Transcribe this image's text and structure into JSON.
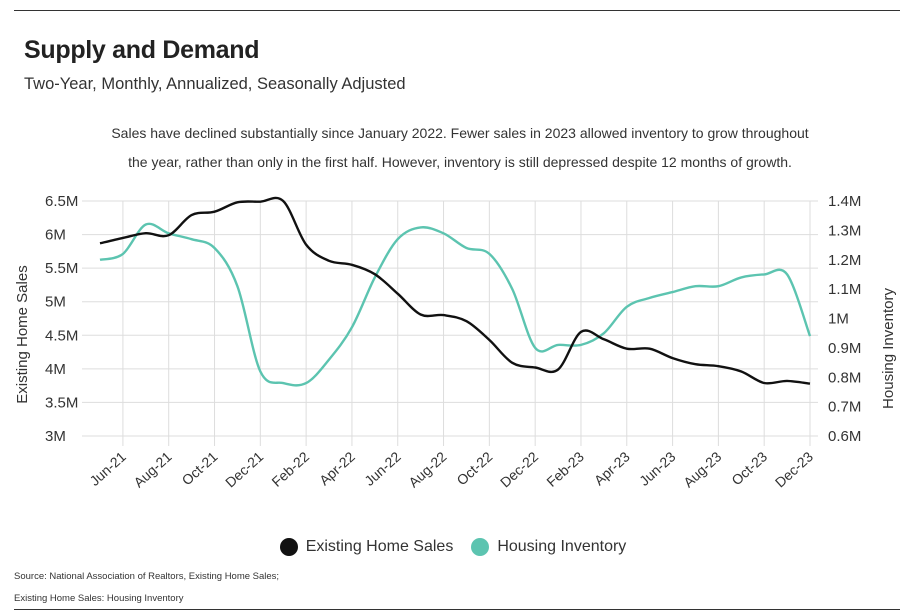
{
  "header": {
    "title": "Supply and Demand",
    "subtitle": "Two-Year, Monthly, Annualized, Seasonally Adjusted",
    "description_line1": "Sales have declined substantially since January 2022. Fewer sales in 2023 allowed inventory to grow throughout",
    "description_line2": "the year, rather than only in the first half. However, inventory is still depressed despite 12 months of growth."
  },
  "footer": {
    "source_line1": "Source:  National Association of Realtors, Existing Home Sales;",
    "source_line2": "Existing Home Sales: Housing Inventory"
  },
  "colors": {
    "sales": "#111111",
    "inventory": "#5cc4b0",
    "grid": "#dddddd"
  },
  "chart_data": {
    "type": "line",
    "xlabel": "",
    "ylabel": "Existing Home Sales",
    "y2label": "Housing Inventory",
    "ylim": [
      3000000,
      6500000
    ],
    "y2lim": [
      600000,
      1400000
    ],
    "yticks": [
      3000000,
      3500000,
      4000000,
      4500000,
      5000000,
      5500000,
      6000000,
      6500000
    ],
    "ytick_labels": [
      "3M",
      "3.5M",
      "4M",
      "4.5M",
      "5M",
      "5.5M",
      "6M",
      "6.5M"
    ],
    "y2ticks": [
      600000,
      700000,
      800000,
      900000,
      1000000,
      1100000,
      1200000,
      1300000,
      1400000
    ],
    "y2tick_labels": [
      "0.6M",
      "0.7M",
      "0.8M",
      "0.9M",
      "1M",
      "1.1M",
      "1.2M",
      "1.3M",
      "1.4M"
    ],
    "x": [
      "May-21",
      "Jun-21",
      "Jul-21",
      "Aug-21",
      "Sep-21",
      "Oct-21",
      "Nov-21",
      "Dec-21",
      "Jan-22",
      "Feb-22",
      "Mar-22",
      "Apr-22",
      "May-22",
      "Jun-22",
      "Jul-22",
      "Aug-22",
      "Sep-22",
      "Oct-22",
      "Nov-22",
      "Dec-22",
      "Jan-23",
      "Feb-23",
      "Mar-23",
      "Apr-23",
      "May-23",
      "Jun-23",
      "Jul-23",
      "Aug-23",
      "Sep-23",
      "Oct-23",
      "Nov-23",
      "Dec-23"
    ],
    "xtick_labels": [
      "Jun-21",
      "Aug-21",
      "Oct-21",
      "Dec-21",
      "Feb-22",
      "Apr-22",
      "Jun-22",
      "Aug-22",
      "Oct-22",
      "Dec-22",
      "Feb-23",
      "Apr-23",
      "Jun-23",
      "Aug-23",
      "Oct-23",
      "Dec-23"
    ],
    "grid": true,
    "legend": "bottom",
    "series": [
      {
        "name": "Existing Home Sales",
        "axis": "left",
        "values": [
          5870000,
          5950000,
          6020000,
          5990000,
          6290000,
          6340000,
          6480000,
          6490000,
          6500000,
          5850000,
          5610000,
          5550000,
          5410000,
          5120000,
          4810000,
          4800000,
          4710000,
          4430000,
          4090000,
          4020000,
          3990000,
          4550000,
          4440000,
          4300000,
          4300000,
          4160000,
          4070000,
          4040000,
          3960000,
          3790000,
          3820000,
          3780000
        ]
      },
      {
        "name": "Housing Inventory",
        "axis": "right",
        "values": [
          1200000,
          1220000,
          1320000,
          1290000,
          1270000,
          1240000,
          1110000,
          820000,
          780000,
          780000,
          860000,
          970000,
          1140000,
          1270000,
          1310000,
          1290000,
          1240000,
          1220000,
          1100000,
          900000,
          910000,
          910000,
          950000,
          1040000,
          1070000,
          1090000,
          1110000,
          1110000,
          1140000,
          1150000,
          1150000,
          940000
        ]
      }
    ]
  }
}
